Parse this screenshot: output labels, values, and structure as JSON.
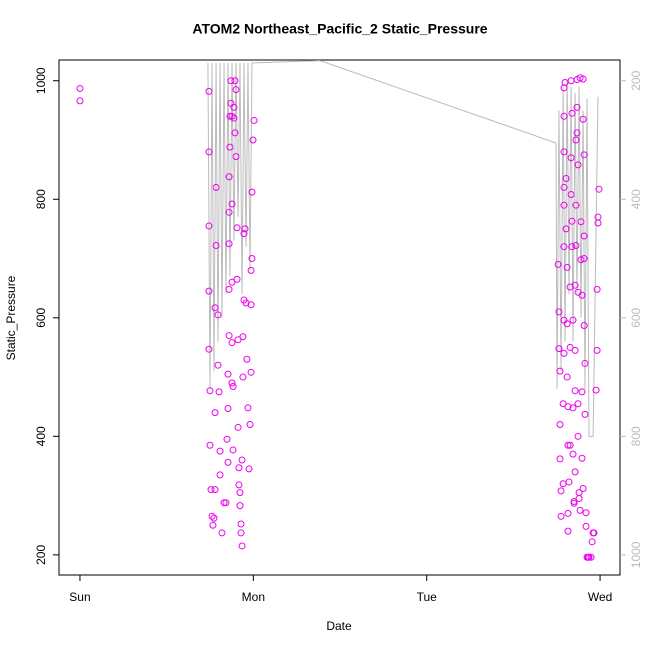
{
  "chart_data": {
    "type": "scatter",
    "title": "ATOM2 Northeast_Pacific_2 Static_Pressure",
    "xlabel": "Date",
    "ylabel": "Static_Pressure",
    "xlim": [
      -0.121,
      3.115
    ],
    "xticks": [
      {
        "value": 0,
        "label": "Sun"
      },
      {
        "value": 1,
        "label": "Mon"
      },
      {
        "value": 2,
        "label": "Tue"
      },
      {
        "value": 3,
        "label": "Wed"
      }
    ],
    "ylim": [
      166,
      1035
    ],
    "yticks": [
      200,
      400,
      600,
      800,
      1000
    ],
    "y2lim": [
      1034,
      165
    ],
    "y2ticks": [
      200,
      400,
      600,
      800,
      1000
    ],
    "y2color": "#bbbbbb",
    "points": {
      "color": "#ee00ee",
      "x": [
        0.0,
        0.0,
        0.744,
        0.744,
        0.744,
        0.744,
        0.744,
        0.75,
        0.75,
        0.756,
        0.762,
        0.767,
        0.773,
        0.779,
        0.779,
        0.779,
        0.785,
        0.785,
        0.796,
        0.796,
        0.802,
        0.808,
        0.808,
        0.819,
        0.831,
        0.842,
        0.848,
        0.854,
        0.854,
        0.854,
        0.86,
        0.86,
        0.86,
        0.86,
        0.86,
        0.865,
        0.865,
        0.871,
        0.871,
        0.877,
        0.877,
        0.877,
        0.877,
        0.877,
        0.883,
        0.883,
        0.888,
        0.888,
        0.894,
        0.894,
        0.9,
        0.9,
        0.906,
        0.906,
        0.912,
        0.912,
        0.917,
        0.917,
        0.923,
        0.923,
        0.929,
        0.929,
        0.935,
        0.935,
        0.94,
        0.94,
        0.946,
        0.946,
        0.952,
        0.958,
        0.963,
        0.969,
        0.975,
        0.981,
        0.987,
        0.987,
        0.987,
        0.992,
        0.992,
        0.998,
        1.004,
        2.758,
        2.763,
        2.763,
        2.769,
        2.769,
        2.769,
        2.775,
        2.775,
        2.787,
        2.787,
        2.792,
        2.792,
        2.792,
        2.792,
        2.792,
        2.792,
        2.792,
        2.792,
        2.798,
        2.804,
        2.804,
        2.81,
        2.81,
        2.81,
        2.815,
        2.815,
        2.815,
        2.815,
        2.821,
        2.827,
        2.827,
        2.827,
        2.833,
        2.833,
        2.833,
        2.838,
        2.838,
        2.838,
        2.844,
        2.844,
        2.844,
        2.85,
        2.85,
        2.856,
        2.856,
        2.856,
        2.856,
        2.861,
        2.861,
        2.861,
        2.867,
        2.867,
        2.867,
        2.873,
        2.873,
        2.873,
        2.873,
        2.879,
        2.879,
        2.885,
        2.885,
        2.89,
        2.89,
        2.896,
        2.896,
        2.896,
        2.902,
        2.902,
        2.902,
        2.908,
        2.908,
        2.908,
        2.908,
        2.913,
        2.913,
        2.919,
        2.919,
        2.925,
        2.931,
        2.936,
        2.948,
        2.954,
        2.96,
        2.965,
        2.977,
        2.983,
        2.983,
        2.988,
        2.988,
        2.994
      ],
      "y": [
        987,
        966,
        982,
        880,
        755,
        645,
        547,
        477,
        385,
        310,
        265,
        250,
        262,
        310,
        440,
        617,
        722,
        820,
        605,
        520,
        475,
        335,
        375,
        237,
        288,
        288,
        395,
        356,
        447,
        505,
        570,
        648,
        725,
        778,
        838,
        888,
        940,
        1000,
        962,
        940,
        792,
        660,
        558,
        490,
        484,
        377,
        937,
        955,
        1000,
        912,
        985,
        872,
        752,
        665,
        563,
        415,
        347,
        318,
        305,
        283,
        252,
        237,
        215,
        360,
        500,
        568,
        630,
        742,
        750,
        625,
        530,
        448,
        345,
        420,
        508,
        622,
        680,
        700,
        812,
        900,
        933,
        690,
        610,
        548,
        510,
        420,
        362,
        308,
        265,
        320,
        455,
        540,
        596,
        720,
        790,
        820,
        880,
        940,
        988,
        997,
        835,
        750,
        685,
        590,
        500,
        450,
        385,
        270,
        240,
        323,
        385,
        550,
        652,
        808,
        870,
        1000,
        945,
        763,
        720,
        596,
        448,
        370,
        290,
        287,
        340,
        477,
        545,
        655,
        722,
        790,
        900,
        1002,
        955,
        912,
        858,
        643,
        455,
        400,
        305,
        295,
        275,
        1005,
        762,
        698,
        638,
        475,
        363,
        312,
        1003,
        935,
        875,
        738,
        700,
        587,
        523,
        437,
        271,
        248,
        196,
        196,
        196,
        196,
        222,
        237,
        237,
        478,
        545,
        648,
        760,
        770,
        817
      ]
    },
    "line": {
      "color": "#bbbbbb",
      "axis": "y2",
      "x": [
        0.738,
        0.75,
        0.762,
        0.773,
        0.785,
        0.796,
        0.808,
        0.819,
        0.831,
        0.842,
        0.854,
        0.865,
        0.877,
        0.888,
        0.9,
        0.912,
        0.923,
        0.935,
        0.946,
        0.958,
        0.969,
        0.981,
        0.992,
        1.385,
        2.746,
        2.752,
        2.763,
        2.775,
        2.787,
        2.798,
        2.81,
        2.821,
        2.833,
        2.844,
        2.856,
        2.867,
        2.879,
        2.89,
        2.902,
        2.913,
        2.925,
        2.936,
        2.96,
        2.988
      ],
      "y": [
        170,
        720,
        170,
        690,
        170,
        640,
        170,
        600,
        170,
        560,
        170,
        530,
        170,
        470,
        170,
        430,
        170,
        560,
        170,
        480,
        170,
        520,
        170,
        166,
        305,
        720,
        250,
        690,
        210,
        640,
        200,
        560,
        210,
        640,
        220,
        560,
        210,
        600,
        250,
        720,
        230,
        800,
        800,
        227
      ]
    }
  }
}
